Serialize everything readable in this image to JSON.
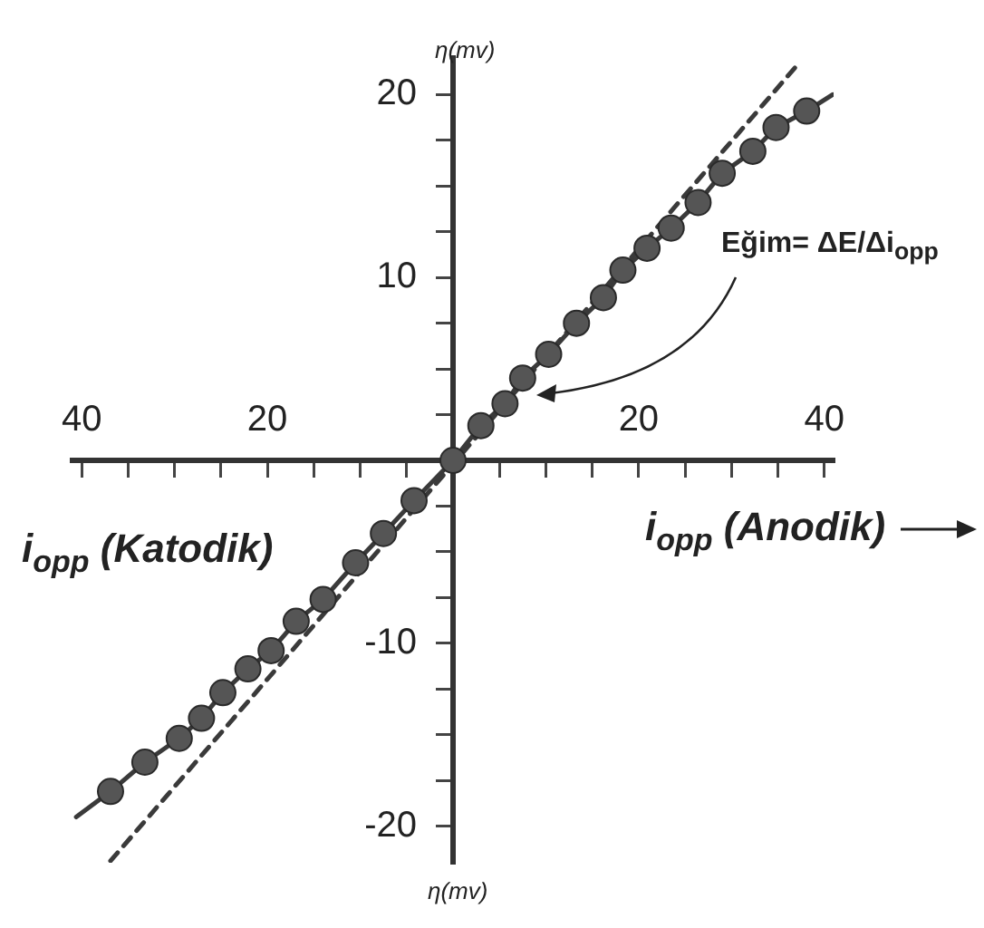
{
  "chart_data": {
    "type": "line",
    "ylabel": "η(mv)",
    "xlabel": "i$_{opp}$ (Anodik)",
    "annotations": [
      "i$_{opp}$ (Katodik)",
      "Eğim= ΔE/Δi$_{opp}$",
      "η(mv)"
    ],
    "xlim": [
      -41,
      41
    ],
    "xticks": [
      {
        "value": -40,
        "label": "40"
      },
      {
        "value": -35,
        "label": null
      },
      {
        "value": -30,
        "label": null
      },
      {
        "value": -25,
        "label": null
      },
      {
        "value": -20,
        "label": "20"
      },
      {
        "value": -15,
        "label": null
      },
      {
        "value": -10,
        "label": null
      },
      {
        "value": -5,
        "label": null
      },
      {
        "value": 0,
        "label": null
      },
      {
        "value": 5,
        "label": null
      },
      {
        "value": 10,
        "label": null
      },
      {
        "value": 15,
        "label": null
      },
      20,
      {
        "value": 25,
        "label": null
      },
      {
        "value": 30,
        "label": null
      },
      {
        "value": 35,
        "label": null
      },
      40
    ],
    "ylim": [
      -22,
      22
    ],
    "yticks": [
      -20,
      {
        "value": -17.5,
        "label": null
      },
      {
        "value": -15,
        "label": null
      },
      {
        "value": -12.5,
        "label": null
      },
      -10,
      {
        "value": -7.5,
        "label": null
      },
      {
        "value": -5,
        "label": null
      },
      {
        "value": -2.5,
        "label": null
      },
      {
        "value": 0,
        "label": null
      },
      {
        "value": 2.5,
        "label": null
      },
      {
        "value": 5,
        "label": null
      },
      {
        "value": 7.5,
        "label": null
      },
      10,
      {
        "value": 12.5,
        "label": null
      },
      {
        "value": 15,
        "label": null
      },
      {
        "value": 17.5,
        "label": null
      },
      20
    ],
    "grid": false,
    "legend": false,
    "series": [
      {
        "type": "line",
        "color": "#3a3a3a",
        "marker": "none",
        "line_style": "solid",
        "x": [
          -40.6,
          -36.9,
          -33.2,
          -29.5,
          -27.1,
          -24.8,
          -22.1,
          -19.6,
          -16.9,
          -14.0,
          -10.5,
          -7.5,
          -4.2,
          0,
          3.0,
          5.6,
          7.5,
          10.3,
          13.3,
          16.2,
          18.3,
          20.9,
          23.5,
          26.4,
          29.0,
          32.3,
          34.8,
          38.1,
          40.9
        ],
        "values": [
          -19.5,
          -18.1,
          -16.5,
          -15.2,
          -14.1,
          -12.7,
          -11.4,
          -10.4,
          -8.8,
          -7.6,
          -5.6,
          -4.0,
          -2.2,
          0,
          1.9,
          3.1,
          4.5,
          5.8,
          7.5,
          8.9,
          10.4,
          11.6,
          12.7,
          14.1,
          15.7,
          16.9,
          18.2,
          19.1,
          20
        ]
      },
      {
        "type": "line",
        "color": "#3a3a3a",
        "marker": "none",
        "line_style": "dashed",
        "x": [
          -36.9,
          37.4
        ],
        "values": [
          -21.9,
          21.8
        ]
      },
      {
        "type": "scatter",
        "color": "#555555",
        "marker": "circle",
        "x": [
          -36.9,
          -33.2,
          -29.5,
          -27.1,
          -24.8,
          -22.1,
          -19.6,
          -16.9,
          -14.0,
          -10.5,
          -7.5,
          -4.2,
          0,
          3.0,
          5.6,
          7.5,
          10.3,
          13.3,
          16.2,
          18.3,
          20.9,
          23.5,
          26.4,
          29.0,
          32.3,
          34.8,
          38.1
        ],
        "values": [
          -18.1,
          -16.5,
          -15.2,
          -14.1,
          -12.7,
          -11.4,
          -10.4,
          -8.8,
          -7.6,
          -5.6,
          -4.0,
          -2.2,
          0,
          1.9,
          3.1,
          4.5,
          5.8,
          7.5,
          8.9,
          10.4,
          11.6,
          12.7,
          14.1,
          15.7,
          16.9,
          18.2,
          19.1
        ]
      }
    ]
  }
}
